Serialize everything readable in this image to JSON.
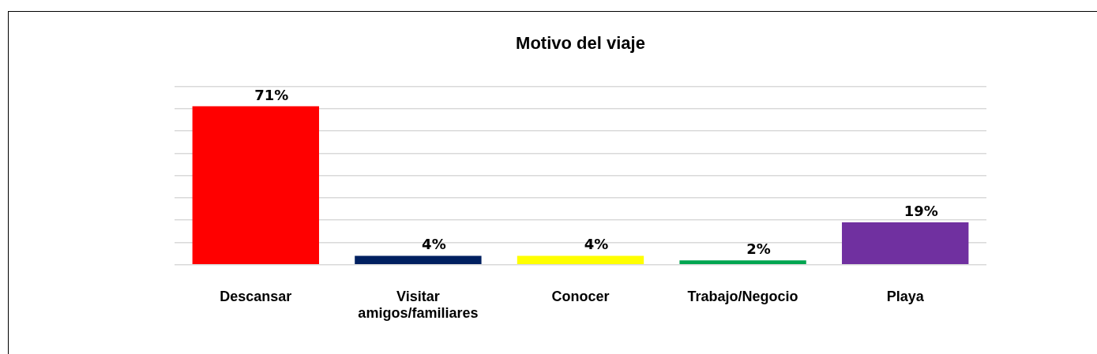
{
  "chart_data": {
    "type": "bar",
    "title": "Motivo del viaje",
    "categories": [
      "Descansar",
      "Visitar amigos/familiares",
      "Conocer",
      "Trabajo/Negocio",
      "Playa"
    ],
    "values": [
      71,
      4,
      4,
      2,
      19
    ],
    "colors": [
      "#ff0000",
      "#002060",
      "#ffff00",
      "#00a550",
      "#7030a0"
    ],
    "value_labels": [
      "71%",
      "4%",
      "4%",
      "2%",
      "19%"
    ],
    "ylim": [
      0,
      80
    ],
    "yticks": [
      {
        "value": 0,
        "label": null
      },
      {
        "value": 10,
        "label": null
      },
      {
        "value": 20,
        "label": null
      },
      {
        "value": 30,
        "label": null
      },
      {
        "value": 40,
        "label": null
      },
      {
        "value": 50,
        "label": null
      },
      {
        "value": 60,
        "label": null
      },
      {
        "value": 70,
        "label": null
      },
      {
        "value": 80,
        "label": null
      }
    ],
    "grid": "y",
    "tick_labels": "x",
    "legend": false
  }
}
